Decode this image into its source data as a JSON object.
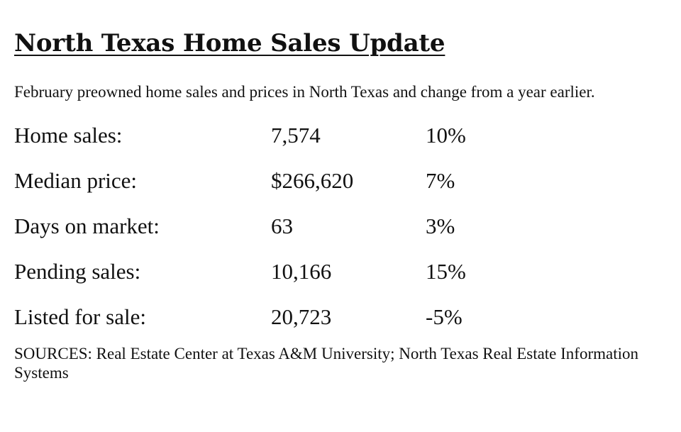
{
  "title": "North Texas Home Sales Update",
  "subtitle": "February preowned home sales and prices in North Texas and change from a year earlier.",
  "rows": [
    {
      "label": "Home sales:",
      "value": "7,574",
      "change": "10%"
    },
    {
      "label": "Median price:",
      "value": "$266,620",
      "change": "7%"
    },
    {
      "label": "Days on market:",
      "value": "63",
      "change": "3%"
    },
    {
      "label": "Pending sales:",
      "value": "10,166",
      "change": "15%"
    },
    {
      "label": "Listed for sale:",
      "value": "20,723",
      "change": "-5%"
    }
  ],
  "sources": "SOURCES: Real Estate Center at Texas A&M University; North Texas Real Estate Information Systems"
}
